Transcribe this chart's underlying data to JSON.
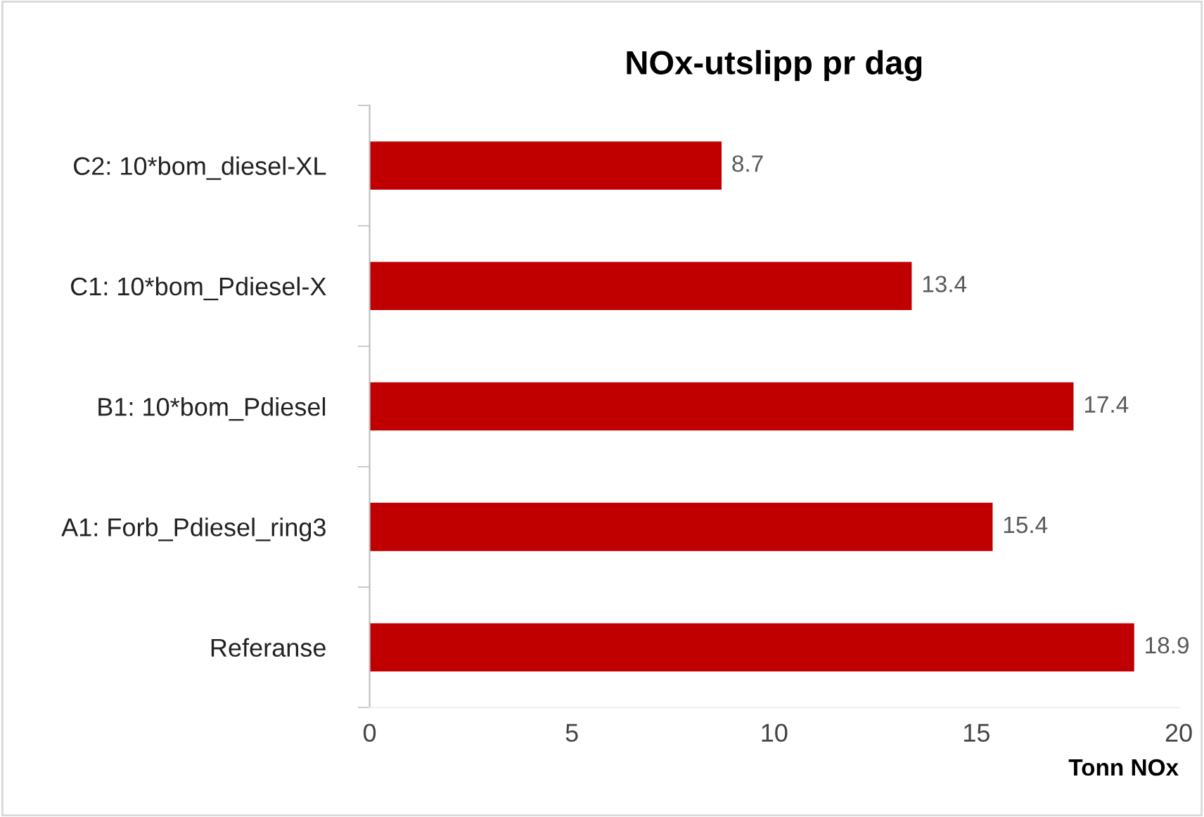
{
  "chart_data": {
    "type": "bar",
    "orientation": "horizontal",
    "title": "NOx-utslipp pr dag",
    "xlabel": "Tonn NOx",
    "categories": [
      "C2: 10*bom_diesel-XL",
      "C1: 10*bom_Pdiesel-X",
      "B1: 10*bom_Pdiesel",
      "A1: Forb_Pdiesel_ring3",
      "Referanse"
    ],
    "values": [
      8.7,
      13.4,
      17.4,
      15.4,
      18.9
    ],
    "color": "#c00000",
    "xlim": [
      0,
      20
    ],
    "xticks": [
      0,
      5,
      10,
      15,
      20
    ],
    "grid": false,
    "legend": false,
    "data_labels": true
  }
}
